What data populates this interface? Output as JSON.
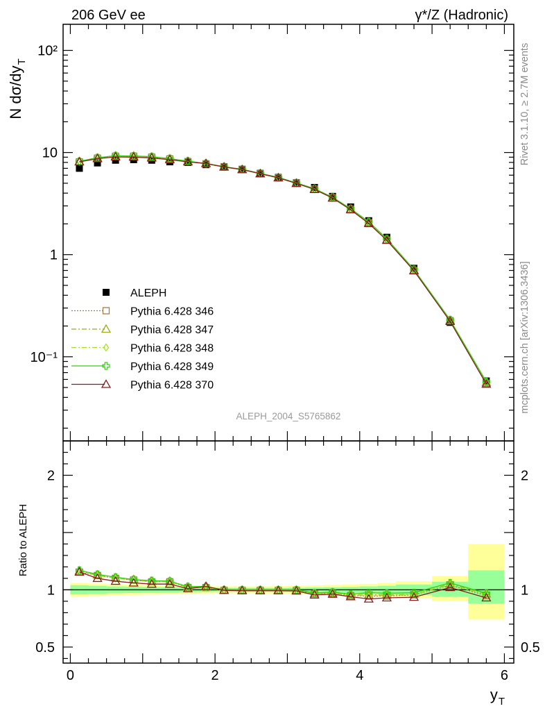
{
  "header": {
    "left_title": "206 GeV ee",
    "right_title": "γ*/Z (Hadronic)"
  },
  "side_labels": {
    "rivet": "Rivet 3.1.10, ≥ 2.7M events",
    "mcplots": "mcplots.cern.ch [arXiv:1306.3436]"
  },
  "analysis_id": "ALEPH_2004_S5765862",
  "colors": {
    "data": "#000000",
    "p346": "#a67c42",
    "p347": "#9aaa1e",
    "p348": "#a0e020",
    "p349": "#30d010",
    "p370": "#8b1a1a",
    "band_inner": "#99ff99",
    "band_outer": "#ffff99"
  },
  "chart_data": [
    {
      "type": "scatter",
      "panel": "main",
      "ylabel": "N dσ/dy",
      "ylabel_sub": "T",
      "yscale": "log",
      "ylim": [
        0.015,
        180
      ],
      "xlim": [
        -0.1,
        6.13
      ],
      "ytick_labels": [
        "10⁻¹",
        "1",
        "10",
        "10²"
      ],
      "ytick_values": [
        0.1,
        1,
        10,
        100
      ],
      "legend_position": "center-left",
      "x": [
        0.125,
        0.375,
        0.625,
        0.875,
        1.125,
        1.375,
        1.625,
        1.875,
        2.125,
        2.375,
        2.625,
        2.875,
        3.125,
        3.375,
        3.625,
        3.875,
        4.125,
        4.375,
        4.75,
        5.25,
        5.75
      ],
      "series": [
        {
          "name": "ALEPH",
          "key": "data",
          "marker": "square",
          "values": [
            7.0,
            7.9,
            8.4,
            8.5,
            8.4,
            8.1,
            8.0,
            7.6,
            7.25,
            6.85,
            6.25,
            5.7,
            5.05,
            4.55,
            3.72,
            2.93,
            2.15,
            1.48,
            0.735,
            0.217,
            0.058
          ]
        },
        {
          "name": "Pythia 6.428 346",
          "key": "p346",
          "marker": "open-square",
          "dash": "2,2",
          "values": [
            8.1,
            8.8,
            9.2,
            9.2,
            9.0,
            8.65,
            8.15,
            7.75,
            7.2,
            6.8,
            6.2,
            5.65,
            5.0,
            4.38,
            3.6,
            2.78,
            2.05,
            1.39,
            0.7,
            0.226,
            0.055
          ]
        },
        {
          "name": "Pythia 6.428 347",
          "key": "p347",
          "marker": "open-triangle",
          "dash": "7,3,2,3",
          "values": [
            8.15,
            8.85,
            9.25,
            9.25,
            9.05,
            8.7,
            8.2,
            7.8,
            7.22,
            6.82,
            6.22,
            5.67,
            5.02,
            4.4,
            3.62,
            2.8,
            2.07,
            1.4,
            0.705,
            0.228,
            0.056
          ]
        },
        {
          "name": "Pythia 6.428 348",
          "key": "p348",
          "marker": "open-diamond",
          "dash": "7,3,2,3",
          "values": [
            8.1,
            8.8,
            9.2,
            9.2,
            9.0,
            8.65,
            8.15,
            7.75,
            7.2,
            6.8,
            6.2,
            5.65,
            5.0,
            4.38,
            3.6,
            2.79,
            2.06,
            1.4,
            0.703,
            0.227,
            0.056
          ]
        },
        {
          "name": "Pythia 6.428 349",
          "key": "p349",
          "marker": "open-cross",
          "dash": "",
          "values": [
            8.2,
            8.9,
            9.3,
            9.25,
            9.1,
            8.72,
            8.22,
            7.82,
            7.25,
            6.85,
            6.25,
            5.7,
            5.05,
            4.42,
            3.65,
            2.82,
            2.1,
            1.43,
            0.715,
            0.23,
            0.057
          ]
        },
        {
          "name": "Pythia 6.428 370",
          "key": "p370",
          "marker": "open-triangle",
          "dash": "",
          "values": [
            8.1,
            8.7,
            9.05,
            9.0,
            8.85,
            8.5,
            8.1,
            7.8,
            7.22,
            6.8,
            6.2,
            5.65,
            4.98,
            4.35,
            3.58,
            2.75,
            2.02,
            1.38,
            0.695,
            0.222,
            0.054
          ]
        }
      ]
    },
    {
      "type": "line",
      "panel": "ratio",
      "ylabel": "Ratio to ALEPH",
      "xlabel": "y",
      "xlabel_sub": "T",
      "ylim": [
        0.36,
        2.3
      ],
      "xlim": [
        -0.1,
        6.13
      ],
      "xtick_labels": [
        "0",
        "2",
        "4",
        "6"
      ],
      "xtick_values": [
        0,
        2,
        4,
        6
      ],
      "ytick_labels": [
        "0.5",
        "1",
        "2"
      ],
      "ytick_values": [
        0.5,
        1,
        2
      ],
      "bins": [
        [
          0.0,
          0.25
        ],
        [
          0.25,
          0.5
        ],
        [
          0.5,
          0.75
        ],
        [
          0.75,
          1.0
        ],
        [
          1.0,
          1.25
        ],
        [
          1.25,
          1.5
        ],
        [
          1.5,
          1.75
        ],
        [
          1.75,
          2.0
        ],
        [
          2.0,
          2.25
        ],
        [
          2.25,
          2.5
        ],
        [
          2.5,
          2.75
        ],
        [
          2.75,
          3.0
        ],
        [
          3.0,
          3.25
        ],
        [
          3.25,
          3.5
        ],
        [
          3.5,
          3.75
        ],
        [
          3.75,
          4.0
        ],
        [
          4.0,
          4.25
        ],
        [
          4.25,
          4.5
        ],
        [
          4.5,
          5.0
        ],
        [
          5.0,
          5.5
        ],
        [
          5.5,
          6.0
        ]
      ],
      "band_inner": [
        [
          0.96,
          1.04
        ],
        [
          0.965,
          1.035
        ],
        [
          0.97,
          1.03
        ],
        [
          0.972,
          1.028
        ],
        [
          0.975,
          1.025
        ],
        [
          0.977,
          1.023
        ],
        [
          0.98,
          1.02
        ],
        [
          0.982,
          1.018
        ],
        [
          0.983,
          1.017
        ],
        [
          0.983,
          1.017
        ],
        [
          0.983,
          1.017
        ],
        [
          0.983,
          1.017
        ],
        [
          0.982,
          1.018
        ],
        [
          0.98,
          1.02
        ],
        [
          0.978,
          1.022
        ],
        [
          0.975,
          1.025
        ],
        [
          0.97,
          1.03
        ],
        [
          0.965,
          1.035
        ],
        [
          0.955,
          1.045
        ],
        [
          0.94,
          1.07
        ],
        [
          0.88,
          1.17
        ]
      ],
      "band_outer": [
        [
          0.94,
          1.06
        ],
        [
          0.945,
          1.055
        ],
        [
          0.95,
          1.05
        ],
        [
          0.955,
          1.045
        ],
        [
          0.958,
          1.042
        ],
        [
          0.962,
          1.038
        ],
        [
          0.965,
          1.035
        ],
        [
          0.968,
          1.032
        ],
        [
          0.97,
          1.03
        ],
        [
          0.97,
          1.03
        ],
        [
          0.97,
          1.03
        ],
        [
          0.968,
          1.032
        ],
        [
          0.965,
          1.035
        ],
        [
          0.962,
          1.038
        ],
        [
          0.958,
          1.042
        ],
        [
          0.955,
          1.045
        ],
        [
          0.948,
          1.052
        ],
        [
          0.94,
          1.06
        ],
        [
          0.925,
          1.075
        ],
        [
          0.9,
          1.12
        ],
        [
          0.74,
          1.4
        ]
      ],
      "x": [
        0.125,
        0.375,
        0.625,
        0.875,
        1.125,
        1.375,
        1.625,
        1.875,
        2.125,
        2.375,
        2.625,
        2.875,
        3.125,
        3.375,
        3.625,
        3.875,
        4.125,
        4.375,
        4.75,
        5.25,
        5.75
      ],
      "series": [
        {
          "name": "Pythia 6.428 346",
          "key": "p346",
          "marker": "open-square",
          "dash": "2,2",
          "values": [
            1.155,
            1.125,
            1.1,
            1.085,
            1.07,
            1.07,
            1.02,
            1.02,
            0.995,
            0.995,
            0.995,
            0.995,
            0.995,
            0.965,
            0.97,
            0.95,
            0.945,
            0.945,
            0.955,
            1.04,
            0.95
          ]
        },
        {
          "name": "Pythia 6.428 347",
          "key": "p347",
          "marker": "open-triangle",
          "dash": "7,3,2,3",
          "values": [
            1.165,
            1.13,
            1.105,
            1.09,
            1.075,
            1.075,
            1.025,
            1.025,
            0.998,
            0.998,
            0.998,
            0.998,
            0.998,
            0.968,
            0.975,
            0.955,
            0.955,
            0.955,
            0.96,
            1.05,
            0.965
          ]
        },
        {
          "name": "Pythia 6.428 348",
          "key": "p348",
          "marker": "open-diamond",
          "dash": "7,3,2,3",
          "values": [
            1.16,
            1.125,
            1.1,
            1.085,
            1.07,
            1.07,
            1.02,
            1.02,
            0.995,
            0.995,
            0.995,
            0.995,
            0.995,
            0.965,
            0.97,
            0.952,
            0.95,
            0.95,
            0.957,
            1.045,
            0.96
          ]
        },
        {
          "name": "Pythia 6.428 349",
          "key": "p349",
          "marker": "open-cross",
          "dash": "",
          "values": [
            1.17,
            1.135,
            1.11,
            1.09,
            1.08,
            1.075,
            1.028,
            1.028,
            1.0,
            1.0,
            1.0,
            1.0,
            1.0,
            0.972,
            0.98,
            0.962,
            0.975,
            0.97,
            0.975,
            1.06,
            0.97
          ]
        },
        {
          "name": "Pythia 6.428 370",
          "key": "p370",
          "marker": "open-triangle",
          "dash": "",
          "values": [
            1.155,
            1.1,
            1.075,
            1.06,
            1.05,
            1.05,
            1.01,
            1.03,
            0.995,
            0.992,
            0.992,
            0.992,
            0.99,
            0.955,
            0.962,
            0.94,
            0.92,
            0.93,
            0.935,
            1.02,
            0.93
          ]
        }
      ]
    }
  ]
}
